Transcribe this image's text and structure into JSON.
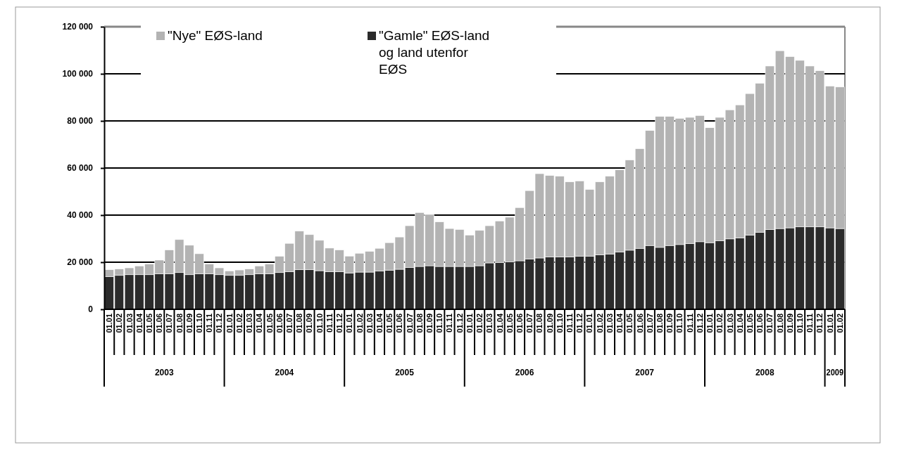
{
  "chart_data": {
    "type": "bar",
    "stacked": true,
    "grid": "y",
    "legend": "top",
    "categories": [
      "01.01",
      "01.02",
      "01.03",
      "01.04",
      "01.05",
      "01.06",
      "01.07",
      "01.08",
      "01.09",
      "01.10",
      "01.11",
      "01.12",
      "01.01",
      "01.02",
      "01.03",
      "01.04",
      "01.05",
      "01.06",
      "01.07",
      "01.08",
      "01.09",
      "01.10",
      "01.11",
      "01.12",
      "01.01",
      "01.02",
      "01.03",
      "01.04",
      "01.05",
      "01.06",
      "01.07",
      "01.08",
      "01.09",
      "01.10",
      "01.11",
      "01.12",
      "01.01",
      "01.02",
      "01.03",
      "01.04",
      "01.05",
      "01.06",
      "01.07",
      "01.08",
      "01.09",
      "01.10",
      "01.11",
      "01.12",
      "01.01",
      "01.02",
      "01.03",
      "01.04",
      "01.05",
      "01.06",
      "01.07",
      "01.08",
      "01.09",
      "01.10",
      "01.11",
      "01.12",
      "01.01",
      "01.02",
      "01.03",
      "01.04",
      "01.05",
      "01.06",
      "01.07",
      "01.08",
      "01.09",
      "01.10",
      "01.11",
      "01.12",
      "01.01",
      "01.02"
    ],
    "annotations": [
      "2003",
      "2004",
      "2005",
      "2006",
      "2007",
      "2008",
      "2009"
    ],
    "ylim": [
      0,
      120000
    ],
    "yticks": [
      0,
      {
        "value": 20000,
        "label": "20 000"
      },
      {
        "value": 40000,
        "label": "40 000"
      },
      {
        "value": 60000,
        "label": "60 000"
      },
      {
        "value": 80000,
        "label": "80 000"
      },
      {
        "value": 100000,
        "label": "100 000"
      },
      {
        "value": 120000,
        "label": "120 000"
      }
    ],
    "series": [
      {
        "name": "\"Gamle\" EØS-land og land utenfor EØS",
        "color": "#2b2b2b",
        "values": [
          13900,
          14400,
          14700,
          14700,
          14700,
          15100,
          15100,
          15600,
          14700,
          15100,
          15100,
          14700,
          14400,
          14400,
          14700,
          15100,
          15100,
          15600,
          16000,
          16800,
          16800,
          16400,
          16000,
          16000,
          15400,
          15800,
          15800,
          16200,
          16600,
          17000,
          17800,
          18200,
          18500,
          18200,
          18200,
          18200,
          18200,
          18500,
          19700,
          19800,
          20200,
          20600,
          21400,
          21800,
          22200,
          22200,
          22200,
          22600,
          22600,
          23100,
          23500,
          24300,
          25100,
          25900,
          27100,
          26300,
          27100,
          27500,
          27900,
          28700,
          28300,
          29100,
          29900,
          30300,
          31500,
          32700,
          33900,
          34300,
          34600,
          35000,
          35000,
          35000,
          34600,
          34300
        ]
      },
      {
        "name": "\"Nye\" EØS-land",
        "color": "#b3b3b3",
        "values": [
          2900,
          2700,
          2900,
          3700,
          4500,
          5800,
          10100,
          14000,
          12500,
          8500,
          4100,
          2900,
          1900,
          2300,
          2400,
          3300,
          4100,
          6900,
          12000,
          16400,
          14900,
          12900,
          10000,
          9200,
          7200,
          8000,
          8800,
          9700,
          11700,
          13700,
          17700,
          22900,
          21700,
          18900,
          16100,
          15700,
          13300,
          15000,
          15800,
          17700,
          18900,
          22600,
          29000,
          35800,
          34600,
          34300,
          31900,
          31900,
          28300,
          31000,
          33000,
          35000,
          38300,
          42300,
          48800,
          55600,
          54800,
          53600,
          53600,
          53600,
          48800,
          52400,
          54800,
          56500,
          60100,
          63300,
          69400,
          75500,
          72700,
          70700,
          68300,
          66300,
          60200,
          60100
        ]
      }
    ]
  }
}
